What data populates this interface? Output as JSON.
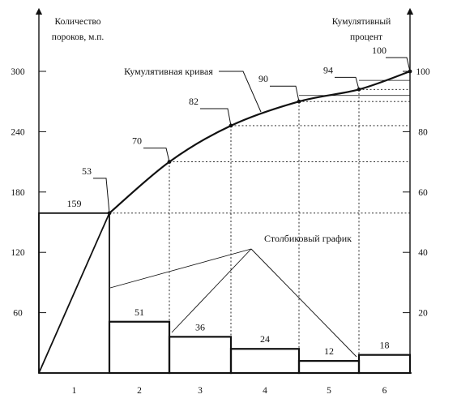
{
  "chart_data": {
    "type": "bar",
    "categories": [
      "1",
      "2",
      "3",
      "4",
      "5",
      "6"
    ],
    "values": [
      159,
      51,
      36,
      24,
      12,
      18
    ],
    "value_labels": [
      "159",
      "51",
      "36",
      "24",
      "12",
      "18"
    ],
    "cumulative_percent": [
      53,
      70,
      82,
      90,
      94,
      100
    ],
    "cumulative_labels": [
      "53",
      "70",
      "82",
      "90",
      "94",
      "100"
    ],
    "left_axis": {
      "title_lines": [
        "Количество",
        "пороков, м.п."
      ],
      "ticks": [
        60,
        120,
        180,
        240,
        300
      ],
      "range": [
        0,
        300
      ]
    },
    "right_axis": {
      "title_lines": [
        "Кумулятивный",
        "процент"
      ],
      "ticks": [
        20,
        40,
        60,
        80,
        100
      ],
      "range": [
        0,
        100
      ]
    },
    "annotations": {
      "cumulative_curve": "Кумулятивная кривая",
      "bar_graph": "Столбиковый график"
    },
    "curve_point_ratios": [
      0.53,
      0.7,
      0.82,
      0.9,
      0.94,
      1.0
    ],
    "bar_graph_line": [
      36,
      0.67,
      51,
      0.35,
      0.35,
      0.35
    ],
    "grid": "dotted",
    "colors": {
      "ink": "#111111"
    }
  }
}
